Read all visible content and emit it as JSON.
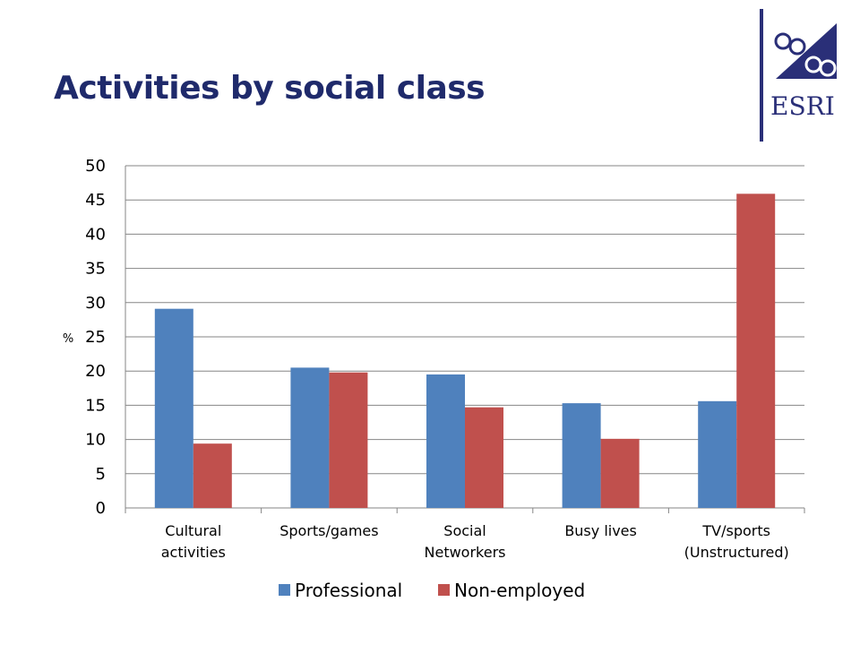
{
  "slide": {
    "title": "Activities by social class",
    "logo_text": "ESRI"
  },
  "colors": {
    "title": "#1f2a6b",
    "professional": "#4f81bd",
    "non_employed": "#c0504d",
    "gridline": "#868686",
    "logo": "#2a2f78"
  },
  "chart_data": {
    "type": "bar",
    "categories": [
      [
        "Cultural",
        "activities"
      ],
      [
        "Sports/games"
      ],
      [
        "Social",
        "Networkers"
      ],
      [
        "Busy lives"
      ],
      [
        "TV/sports",
        "(Unstructured)"
      ]
    ],
    "series": [
      {
        "name": "Professional",
        "values": [
          29.1,
          20.5,
          19.5,
          15.3,
          15.6
        ]
      },
      {
        "name": "Non-employed",
        "values": [
          9.4,
          19.8,
          14.7,
          10.1,
          45.9
        ]
      }
    ],
    "ylabel": "%",
    "ylim": [
      0,
      50
    ],
    "ytick_step": 5,
    "yticks": [
      "0",
      "5",
      "10",
      "15",
      "20",
      "25",
      "30",
      "35",
      "40",
      "45",
      "50"
    ],
    "grid": true,
    "legend_position": "bottom"
  }
}
